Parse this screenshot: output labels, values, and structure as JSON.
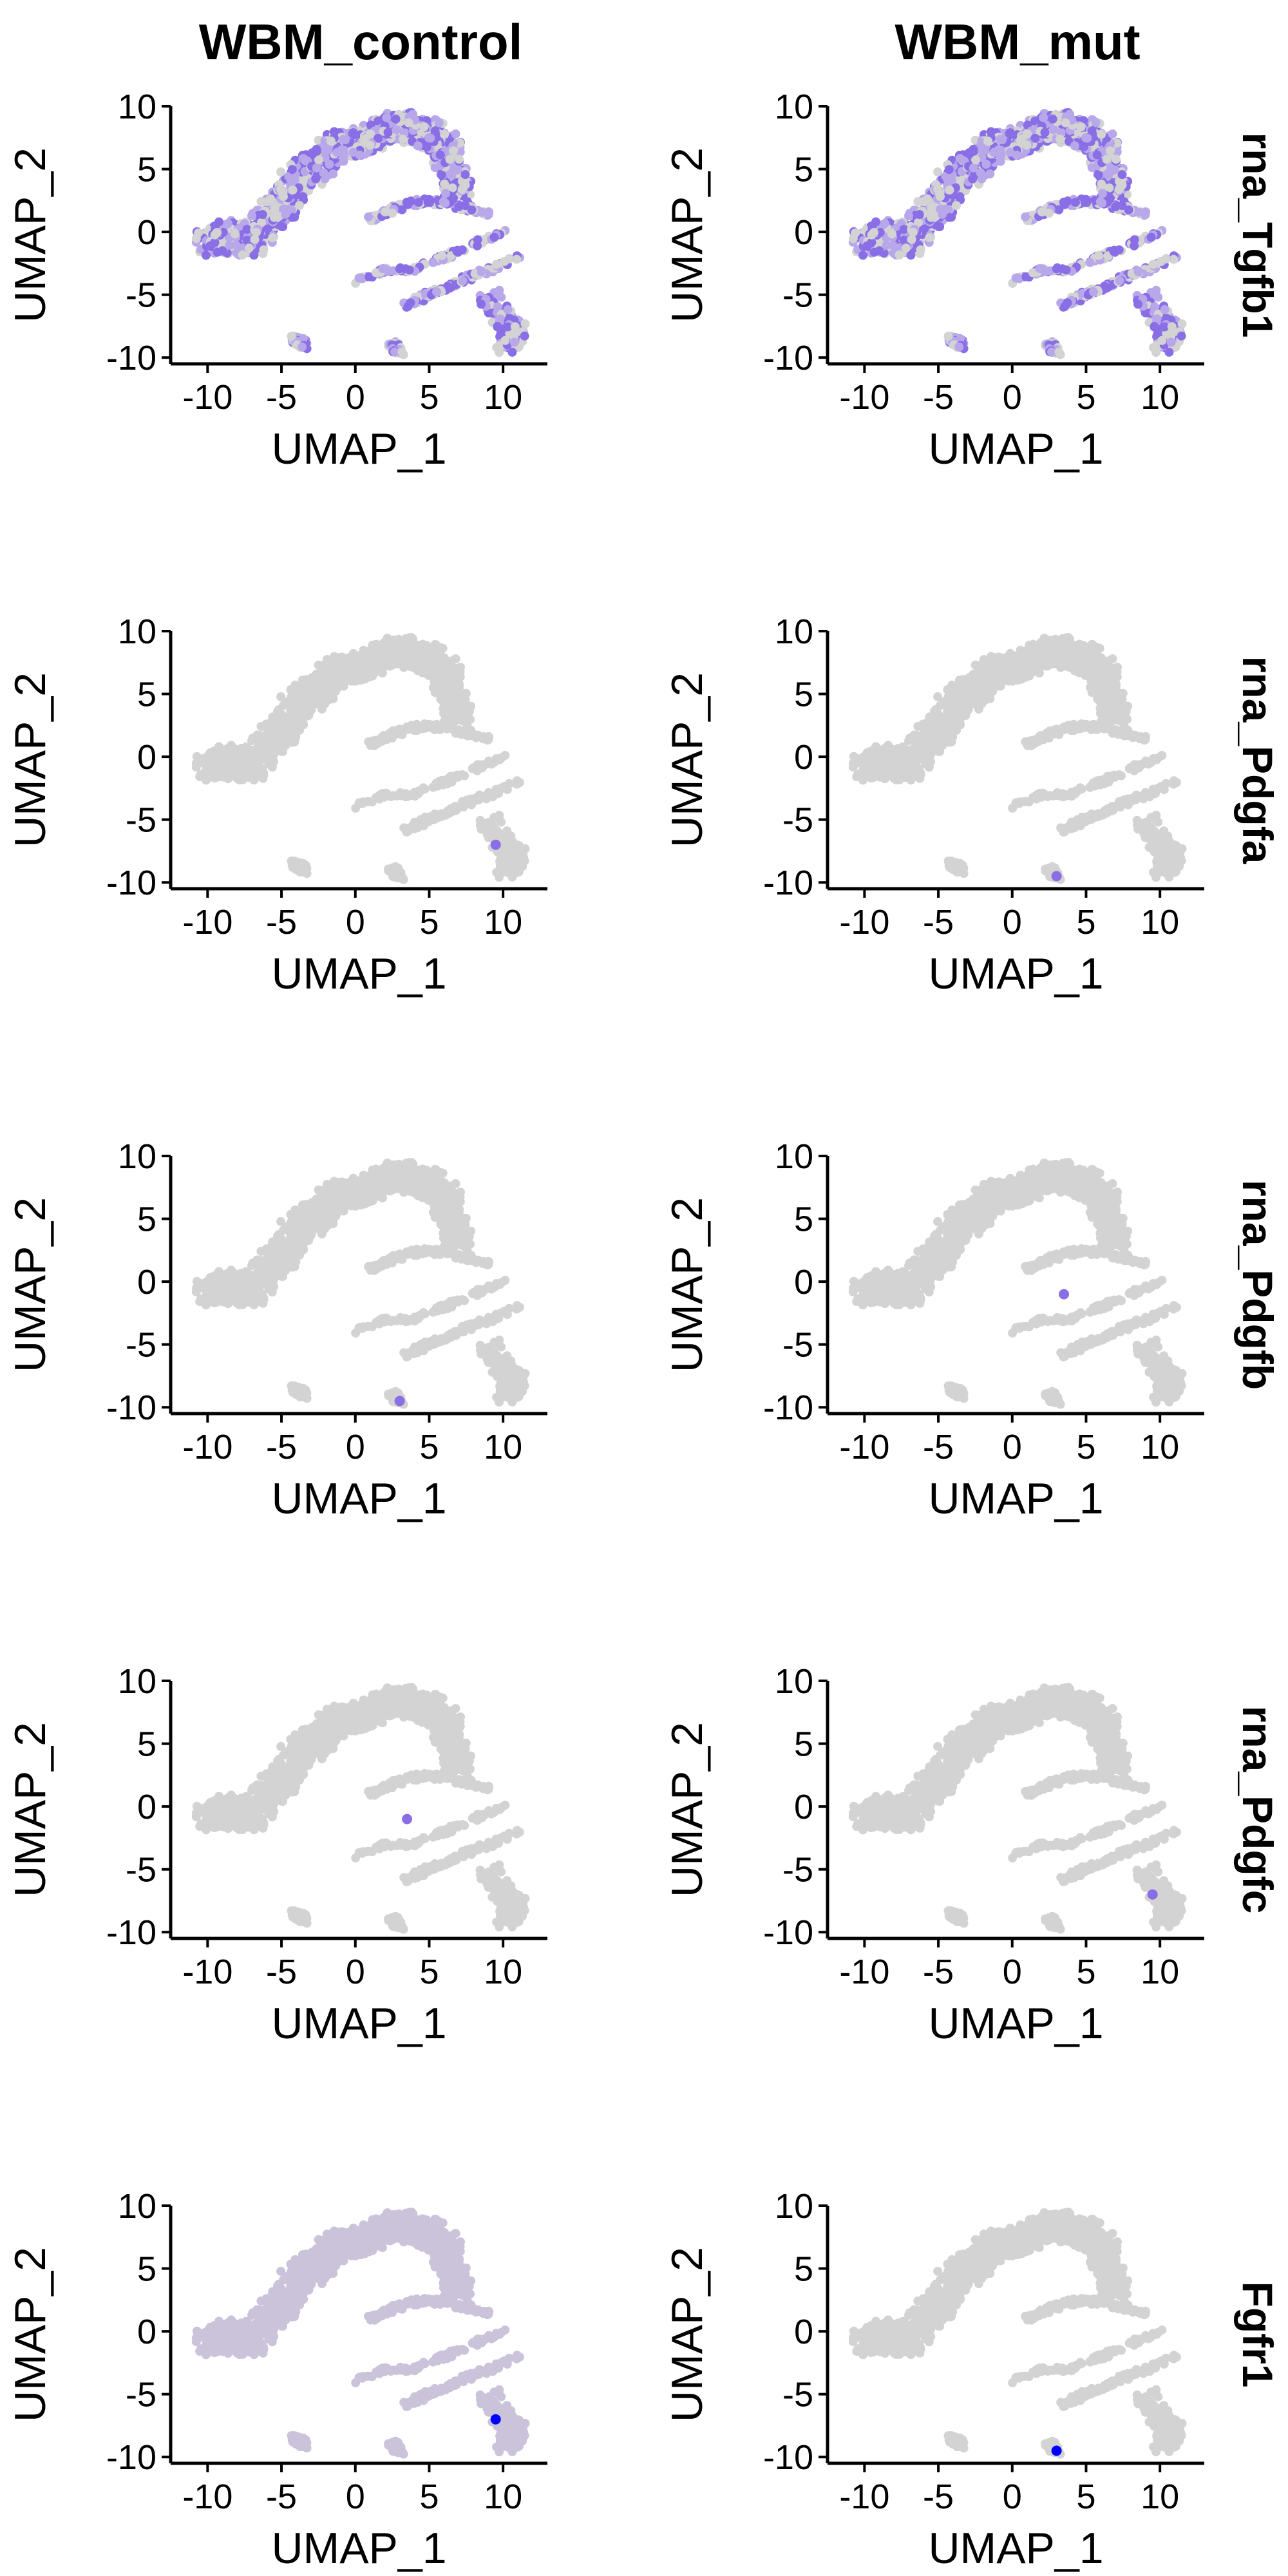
{
  "columns": [
    "WBM_control",
    "WBM_mut"
  ],
  "rows": [
    "rna_Tgfb1",
    "rna_Pdgfa",
    "rna_Pdgfb",
    "rna_Pdgfc",
    "Fgfr1"
  ],
  "colors": {
    "background": "#ffffff",
    "low": "#d3d3d3",
    "high": "#0000ff",
    "mid": "#8a6ee6",
    "axis": "#000000"
  },
  "chart_data": {
    "type": "scatter",
    "title": "",
    "xlabel": "UMAP_1",
    "ylabel": "UMAP_2",
    "xlim": [
      -12.5,
      13
    ],
    "ylim": [
      -10.5,
      10
    ],
    "x_ticks": [
      -10,
      -5,
      0,
      5,
      10
    ],
    "y_ticks": [
      -10,
      -5,
      0,
      5,
      10
    ],
    "x_tick_labels": [
      "-10",
      "-5",
      "0",
      "5",
      "10"
    ],
    "y_tick_labels": [
      "-10",
      "-5",
      "0",
      "5",
      "10"
    ],
    "grid": false,
    "color_scale": "expression: lightgrey (low) to blue (high)",
    "clusters": [
      {
        "name": "main-arc",
        "points": [
          [
            -10,
            -1
          ],
          [
            -9,
            -0.5
          ],
          [
            -8,
            0
          ],
          [
            -7,
            -1
          ],
          [
            -6,
            1
          ],
          [
            -5,
            2
          ],
          [
            -4,
            4
          ],
          [
            -3,
            5
          ],
          [
            -2,
            6
          ],
          [
            -1,
            7
          ],
          [
            0,
            7
          ],
          [
            1,
            7.5
          ],
          [
            2,
            8
          ],
          [
            3,
            8.5
          ],
          [
            4,
            8
          ],
          [
            5,
            8
          ],
          [
            6,
            7
          ],
          [
            6.5,
            5
          ],
          [
            7,
            3
          ]
        ],
        "width": 2.0
      },
      {
        "name": "right-band",
        "points": [
          [
            1,
            1
          ],
          [
            3,
            2
          ],
          [
            5,
            2.5
          ],
          [
            7,
            2
          ],
          [
            9,
            1.5
          ]
        ],
        "width": 0.5
      },
      {
        "name": "middle-band",
        "points": [
          [
            0,
            -4
          ],
          [
            2,
            -3
          ],
          [
            4,
            -3
          ],
          [
            6,
            -2
          ],
          [
            8,
            -1
          ],
          [
            10,
            0
          ]
        ],
        "width": 0.4
      },
      {
        "name": "lower-band",
        "points": [
          [
            3,
            -6
          ],
          [
            5,
            -5
          ],
          [
            7,
            -4
          ],
          [
            9,
            -3
          ],
          [
            11,
            -2
          ]
        ],
        "width": 0.5
      },
      {
        "name": "blob-left-bottom",
        "points": [
          [
            -4,
            -8.5
          ],
          [
            -3.5,
            -9
          ]
        ],
        "width": 0.7
      },
      {
        "name": "blob-mid-bottom",
        "points": [
          [
            2.5,
            -9
          ],
          [
            3,
            -9.5
          ]
        ],
        "width": 0.6
      },
      {
        "name": "blob-right-bottom",
        "points": [
          [
            9,
            -5
          ],
          [
            10,
            -7
          ],
          [
            11,
            -8
          ],
          [
            10,
            -9
          ]
        ],
        "width": 1.4
      }
    ],
    "panels": [
      {
        "column": "WBM_control",
        "row": "rna_Tgfb1",
        "expression": "moderate, widespread (purple across arc and right blob)"
      },
      {
        "column": "WBM_mut",
        "row": "rna_Tgfb1",
        "expression": "moderate, widespread (purple across arc and bands)"
      },
      {
        "column": "WBM_control",
        "row": "rna_Pdgfa",
        "expression": "near zero, sparse"
      },
      {
        "column": "WBM_mut",
        "row": "rna_Pdgfa",
        "expression": "near zero, sparse"
      },
      {
        "column": "WBM_control",
        "row": "rna_Pdgfb",
        "expression": "near zero, few positive cells"
      },
      {
        "column": "WBM_mut",
        "row": "rna_Pdgfb",
        "expression": "near zero, sparse"
      },
      {
        "column": "WBM_control",
        "row": "rna_Pdgfc",
        "expression": "near zero, one positive cell"
      },
      {
        "column": "WBM_mut",
        "row": "rna_Pdgfc",
        "expression": "near zero, one positive cell"
      },
      {
        "column": "WBM_control",
        "row": "Fgfr1",
        "expression": "low uniform (faint lavender), one high cell"
      },
      {
        "column": "WBM_mut",
        "row": "Fgfr1",
        "expression": "near zero, one high cell"
      }
    ]
  }
}
